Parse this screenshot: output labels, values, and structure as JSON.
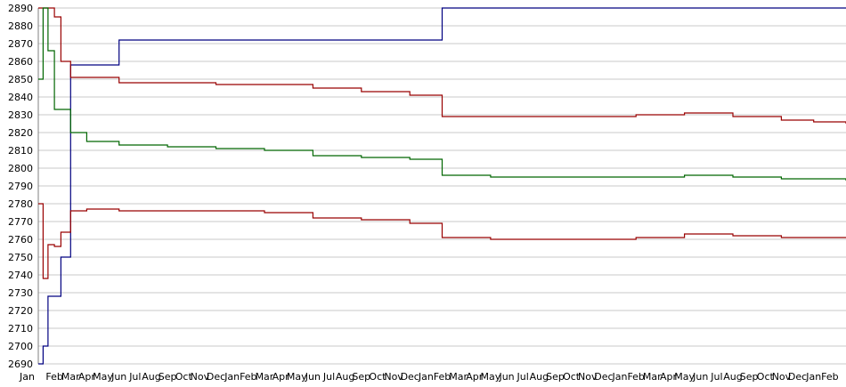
{
  "chart_data": {
    "type": "line",
    "title": "",
    "xlabel": "",
    "ylabel": "",
    "ylim": [
      2690,
      2890
    ],
    "yticks": [
      2690,
      2700,
      2710,
      2720,
      2730,
      2740,
      2750,
      2760,
      2770,
      2780,
      2790,
      2800,
      2810,
      2820,
      2830,
      2840,
      2850,
      2860,
      2870,
      2880,
      2890
    ],
    "grid": true,
    "legend": "none",
    "x_period_months": 50,
    "x_tick_labels": [
      "Jan",
      "Feb",
      "Mar",
      "Apr",
      "May",
      "Jun",
      "Jul",
      "Aug",
      "Sep",
      "Oct",
      "Nov",
      "Dec",
      "Jan",
      "Feb",
      "Mar",
      "Apr",
      "May",
      "Jun",
      "Jul",
      "Aug",
      "Sep",
      "Oct",
      "Nov",
      "Dec",
      "Jan",
      "Feb",
      "Mar",
      "Apr",
      "May",
      "Jun",
      "Jul",
      "Aug",
      "Sep",
      "Oct",
      "Nov",
      "Dec",
      "Jan",
      "Feb",
      "Mar",
      "Apr",
      "May",
      "Jun",
      "Jul",
      "Aug",
      "Sep",
      "Oct",
      "Nov",
      "Dec",
      "Jan",
      "Feb"
    ],
    "x": [
      0,
      0.3,
      0.6,
      1.0,
      1.4,
      2.0,
      3,
      5,
      8,
      11,
      14,
      17,
      20,
      23,
      24,
      25,
      28,
      31,
      34,
      37,
      40,
      43,
      46,
      48,
      50
    ],
    "series": [
      {
        "color": "#000080",
        "values": [
          2690,
          2700,
          2728,
          2728,
          2750,
          2858,
          2858,
          2872,
          2872,
          2872,
          2872,
          2872,
          2872,
          2872,
          2872,
          2890,
          2890,
          2890,
          2890,
          2890,
          2890,
          2890,
          2890,
          2890,
          2890
        ]
      },
      {
        "color": "#990000",
        "values": [
          2890,
          2890,
          2890,
          2885,
          2860,
          2851,
          2851,
          2848,
          2848,
          2847,
          2847,
          2845,
          2843,
          2841,
          2841,
          2829,
          2829,
          2829,
          2829,
          2830,
          2831,
          2829,
          2827,
          2826,
          2825
        ]
      },
      {
        "color": "#006600",
        "values": [
          2850,
          2890,
          2866,
          2833,
          2833,
          2820,
          2815,
          2813,
          2812,
          2811,
          2810,
          2807,
          2806,
          2805,
          2805,
          2796,
          2795,
          2795,
          2795,
          2795,
          2796,
          2795,
          2794,
          2794,
          2793
        ]
      },
      {
        "color": "#990000",
        "values": [
          2780,
          2738,
          2757,
          2756,
          2764,
          2776,
          2777,
          2776,
          2776,
          2776,
          2775,
          2772,
          2771,
          2769,
          2769,
          2761,
          2760,
          2760,
          2760,
          2761,
          2763,
          2762,
          2761,
          2761,
          2761
        ]
      }
    ]
  }
}
